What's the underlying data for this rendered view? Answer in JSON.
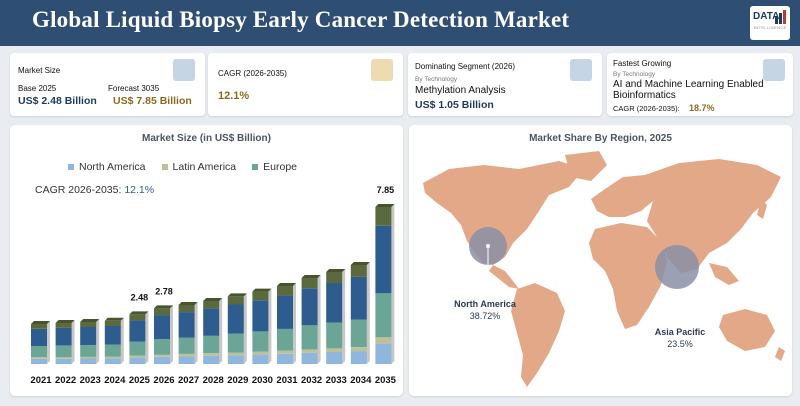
{
  "header": {
    "title": "Global Liquid Biopsy Early Cancer Detection Market"
  },
  "logo": {
    "text": "DATA",
    "subtext": "INTELLIGENCE"
  },
  "cards": {
    "market_size": {
      "label": "Market Size",
      "base_label": "Base 2025",
      "base_value": "US$ 2.48 Billion",
      "forecast_label": "Forecast 3035",
      "forecast_value": "US$ 7.85 Billion"
    },
    "cagr": {
      "label": "CAGR (2026-2035)",
      "value": "12.1%"
    },
    "dominating": {
      "label": "Dominating Segment (2026)",
      "by": "By Technology",
      "segment": "Methylation Analysis",
      "value": "US$ 1.05 Billion"
    },
    "fastest": {
      "label": "Fastest Growing",
      "by": "By Technology",
      "segment_line1": "AI and Machine Learning Enabled",
      "segment_line2": "Bioinformatics",
      "cagr_label": "CAGR (2026-2035):",
      "cagr_value": "18.7%"
    }
  },
  "colors": {
    "header": "#2f4e73",
    "gold": "#8a6a1f",
    "navy": "#1d3a5f",
    "square_blue": "#c5d5e4",
    "square_gold": "#ecdcaf",
    "map_land": "#e3a887",
    "bubble": "#8a8fa6",
    "north_america": "#8fb6dd",
    "latin_america": "#bcc196",
    "europe": "#6ba596",
    "seg_dark_green": "#5a6a3e",
    "seg_dark_blue": "#2e5c8e"
  },
  "chart_data": [
    {
      "type": "bar",
      "title": "Market Size (in US$ Billion)",
      "stacked": true,
      "categories": [
        "2021",
        "2022",
        "2023",
        "2024",
        "2025",
        "2026",
        "2027",
        "2028",
        "2029",
        "2030",
        "2031",
        "2032",
        "2033",
        "2034",
        "2035"
      ],
      "totals": [
        2.0,
        2.05,
        2.1,
        2.16,
        2.48,
        2.78,
        2.95,
        3.15,
        3.38,
        3.62,
        3.9,
        4.3,
        4.6,
        4.95,
        7.85
      ],
      "shown_value_labels": {
        "2025": "2.48",
        "2026": "2.78",
        "2035": "7.85"
      },
      "legend": [
        "North America",
        "Latin America",
        "Europe"
      ],
      "legend_placement": "top",
      "annotation_label": "CAGR 2026-2035:",
      "annotation_value": "12.1%",
      "grid": false
    },
    {
      "type": "map",
      "title": "Market Share By Region, 2025",
      "regions": [
        {
          "name": "North America",
          "value": "38.72%"
        },
        {
          "name": "Asia Pacific",
          "value": "23.5%"
        }
      ]
    }
  ]
}
